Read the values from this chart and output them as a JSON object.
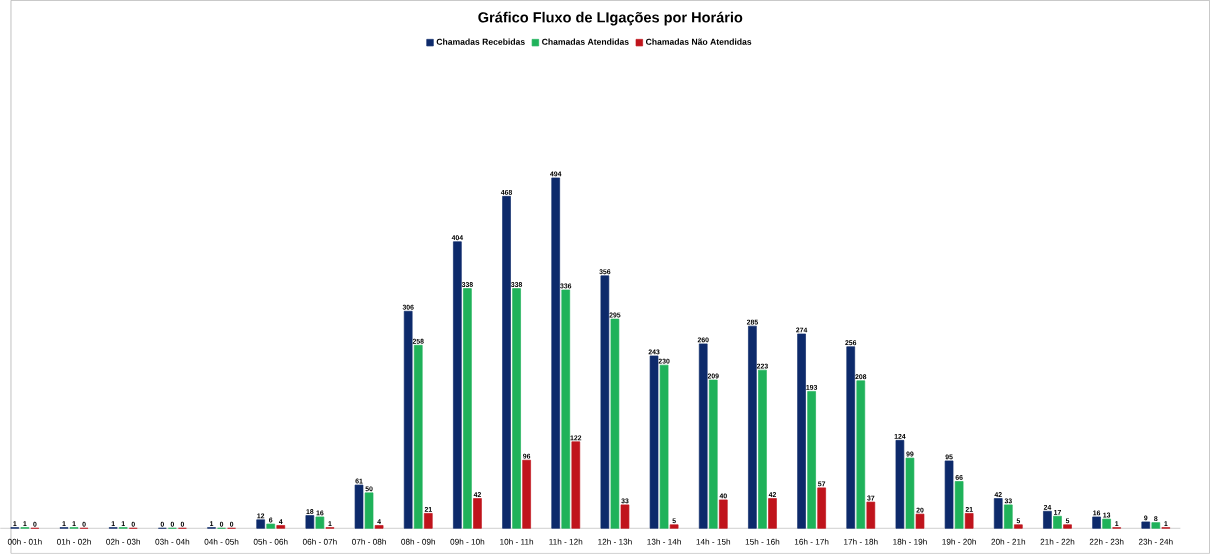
{
  "chart_data": {
    "type": "bar",
    "title": "Gráfico Fluxo de LIgações por Horário",
    "categories": [
      "00h - 01h",
      "01h - 02h",
      "02h - 03h",
      "03h - 04h",
      "04h - 05h",
      "05h - 06h",
      "06h - 07h",
      "07h - 08h",
      "08h - 09h",
      "09h - 10h",
      "10h - 11h",
      "11h - 12h",
      "12h - 13h",
      "13h - 14h",
      "14h - 15h",
      "15h - 16h",
      "16h - 17h",
      "17h - 18h",
      "18h - 19h",
      "19h - 20h",
      "20h - 21h",
      "21h - 22h",
      "22h - 23h",
      "23h - 24h"
    ],
    "series": [
      {
        "name": "Chamadas Recebidas",
        "color": "#0d2a6b",
        "values": [
          1,
          1,
          1,
          0,
          1,
          12,
          18,
          61,
          306,
          404,
          468,
          494,
          356,
          243,
          260,
          285,
          274,
          256,
          124,
          95,
          42,
          24,
          16,
          9
        ]
      },
      {
        "name": "Chamadas Atendidas",
        "color": "#1fb25a",
        "values": [
          1,
          1,
          1,
          0,
          0,
          6,
          16,
          50,
          258,
          338,
          338,
          336,
          295,
          230,
          209,
          223,
          193,
          208,
          99,
          66,
          33,
          17,
          13,
          8
        ]
      },
      {
        "name": "Chamadas Não Atendidas",
        "color": "#c0141c",
        "values": [
          0,
          0,
          0,
          0,
          0,
          4,
          1,
          4,
          21,
          42,
          96,
          122,
          33,
          5,
          40,
          42,
          57,
          37,
          20,
          21,
          5,
          5,
          1,
          1
        ]
      }
    ],
    "data_labels": true,
    "legend": "top",
    "tick_labels": "x"
  }
}
